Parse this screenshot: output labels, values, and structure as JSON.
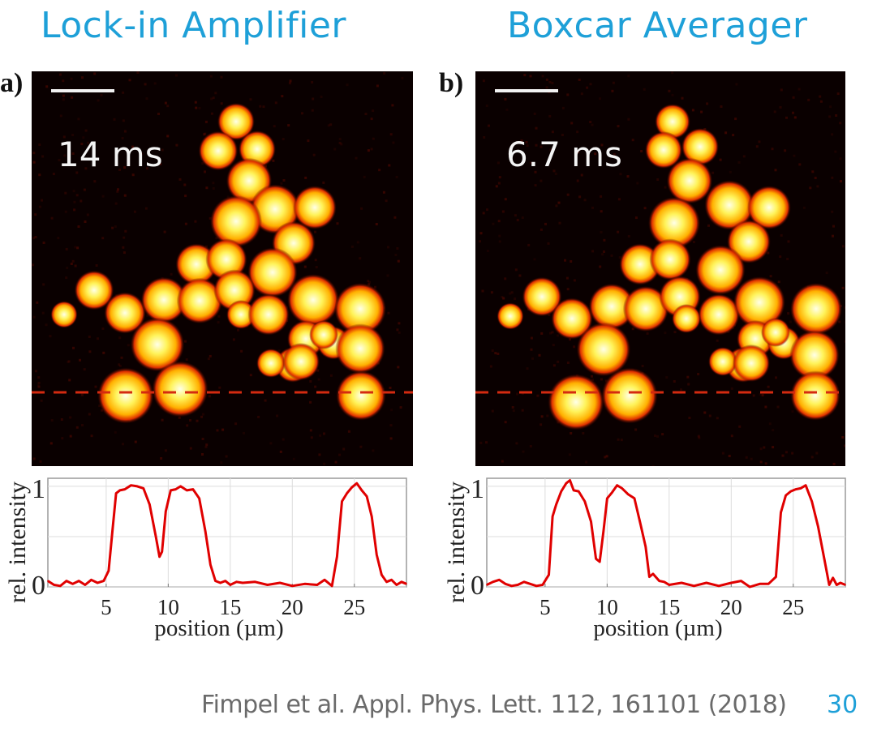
{
  "slide": {
    "titles": [
      "Lock-in Amplifier",
      "Boxcar Averager"
    ],
    "citation": "Fimpel et al. Appl. Phys. Lett. 112, 161101 (2018)",
    "page_number": "30",
    "colors": {
      "title": "#1ea0d8",
      "citation": "#6a6a6a",
      "profile_line": "#e00000",
      "dash_line": "#d42a10"
    }
  },
  "panels": [
    {
      "label": "a)",
      "acquisition_time": "14 ms",
      "colormap": "hot"
    },
    {
      "label": "b)",
      "acquisition_time": "6.7 ms",
      "colormap": "hot"
    }
  ],
  "chart_data": [
    {
      "type": "line",
      "title": "Lock-in Amplifier",
      "xlabel": "position  (µm)",
      "ylabel": "rel. intensity",
      "xlim": [
        0.3,
        29.2
      ],
      "ylim": [
        0,
        1.08
      ],
      "xticks": [
        5,
        10,
        15,
        20,
        25
      ],
      "yticks": [
        0,
        1
      ],
      "ygrid": [
        0,
        0.5,
        1
      ],
      "grid": true,
      "series": [
        {
          "name": "profile",
          "x": [
            0.3,
            0.8,
            1.3,
            1.8,
            2.3,
            2.8,
            3.3,
            3.8,
            4.3,
            4.8,
            5.2,
            5.5,
            5.8,
            6.1,
            6.5,
            7.0,
            7.5,
            8.0,
            8.5,
            9.0,
            9.3,
            9.5,
            9.8,
            10.2,
            10.6,
            11.0,
            11.5,
            12.0,
            12.5,
            13.0,
            13.4,
            13.8,
            14.2,
            14.6,
            15.0,
            15.5,
            16.0,
            17.0,
            18.0,
            19.0,
            20.0,
            21.0,
            22.0,
            22.6,
            23.2,
            23.6,
            24.0,
            24.4,
            24.8,
            25.2,
            25.6,
            26.0,
            26.4,
            26.8,
            27.2,
            27.6,
            28.0,
            28.4,
            28.8,
            29.2
          ],
          "y": [
            0.06,
            0.02,
            0.01,
            0.06,
            0.03,
            0.06,
            0.02,
            0.07,
            0.04,
            0.06,
            0.16,
            0.55,
            0.93,
            0.96,
            0.97,
            1.01,
            1.0,
            0.98,
            0.82,
            0.5,
            0.3,
            0.35,
            0.75,
            0.96,
            0.97,
            1.0,
            0.96,
            0.97,
            0.88,
            0.55,
            0.22,
            0.06,
            0.04,
            0.06,
            0.02,
            0.05,
            0.04,
            0.05,
            0.02,
            0.04,
            0.01,
            0.03,
            0.02,
            0.07,
            0.01,
            0.3,
            0.85,
            0.93,
            0.99,
            1.03,
            0.96,
            0.9,
            0.7,
            0.32,
            0.12,
            0.05,
            0.07,
            0.02,
            0.05,
            0.03
          ]
        }
      ]
    },
    {
      "type": "line",
      "title": "Boxcar Averager",
      "xlabel": "position  (µm)",
      "ylabel": "rel. intensity",
      "xlim": [
        0.3,
        29.2
      ],
      "ylim": [
        0,
        1.08
      ],
      "xticks": [
        5,
        10,
        15,
        20,
        25
      ],
      "yticks": [
        0,
        1
      ],
      "ygrid": [
        0,
        0.5,
        1
      ],
      "grid": true,
      "series": [
        {
          "name": "profile",
          "x": [
            0.3,
            0.8,
            1.3,
            1.8,
            2.3,
            2.8,
            3.3,
            3.8,
            4.3,
            4.8,
            5.3,
            5.6,
            5.9,
            6.3,
            6.7,
            7.0,
            7.3,
            7.7,
            8.2,
            8.7,
            9.1,
            9.4,
            9.7,
            10.0,
            10.4,
            10.8,
            11.2,
            11.7,
            12.2,
            12.7,
            13.1,
            13.4,
            13.7,
            14.2,
            14.6,
            15.0,
            16.0,
            17.0,
            18.0,
            19.0,
            20.0,
            20.8,
            21.5,
            22.3,
            23.0,
            23.6,
            24.0,
            24.4,
            24.8,
            25.2,
            25.6,
            26.0,
            26.5,
            27.0,
            27.5,
            27.9,
            28.2,
            28.5,
            28.8,
            29.2
          ],
          "y": [
            0.02,
            0.05,
            0.07,
            0.03,
            0.01,
            0.02,
            0.05,
            0.03,
            0.01,
            0.02,
            0.12,
            0.7,
            0.82,
            0.95,
            1.03,
            1.06,
            0.96,
            0.95,
            0.85,
            0.65,
            0.28,
            0.25,
            0.55,
            0.88,
            0.94,
            1.01,
            0.98,
            0.92,
            0.88,
            0.62,
            0.4,
            0.1,
            0.13,
            0.06,
            0.05,
            0.02,
            0.04,
            0.01,
            0.04,
            0.01,
            0.04,
            0.06,
            0.0,
            0.03,
            0.03,
            0.1,
            0.74,
            0.91,
            0.95,
            0.97,
            0.98,
            1.01,
            0.85,
            0.6,
            0.28,
            0.02,
            0.09,
            0.02,
            0.04,
            0.02
          ]
        }
      ]
    }
  ]
}
